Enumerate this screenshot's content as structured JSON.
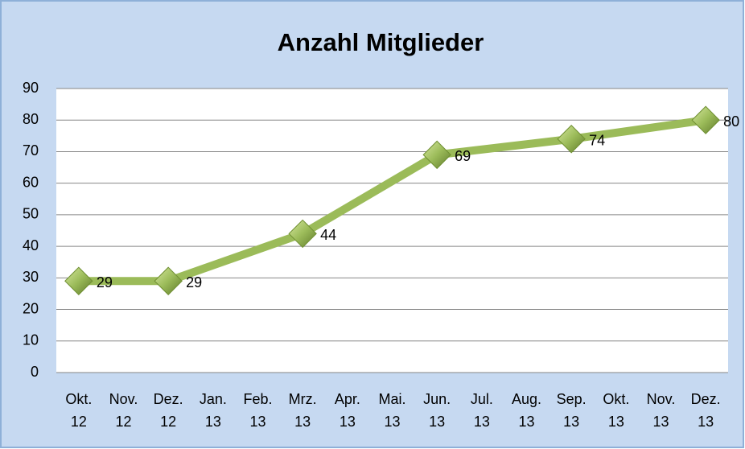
{
  "chart_data": {
    "type": "line",
    "title": "Anzahl Mitglieder",
    "categories": [
      "Okt. 12",
      "Nov. 12",
      "Dez. 12",
      "Jan. 13",
      "Feb. 13",
      "Mrz. 13",
      "Apr. 13",
      "Mai. 13",
      "Jun. 13",
      "Jul. 13",
      "Aug. 13",
      "Sep. 13",
      "Okt. 13",
      "Nov. 13",
      "Dez. 13"
    ],
    "series": [
      {
        "name": "Anzahl Mitglieder",
        "color": "#9bbb59",
        "values": [
          29,
          null,
          29,
          null,
          null,
          44,
          null,
          null,
          69,
          null,
          null,
          74,
          null,
          null,
          80
        ]
      }
    ],
    "connect_gaps": true,
    "data_labels": true,
    "ylim": [
      0,
      90
    ],
    "yticks": [
      0,
      10,
      20,
      30,
      40,
      50,
      60,
      70,
      80,
      90
    ],
    "grid": true
  }
}
